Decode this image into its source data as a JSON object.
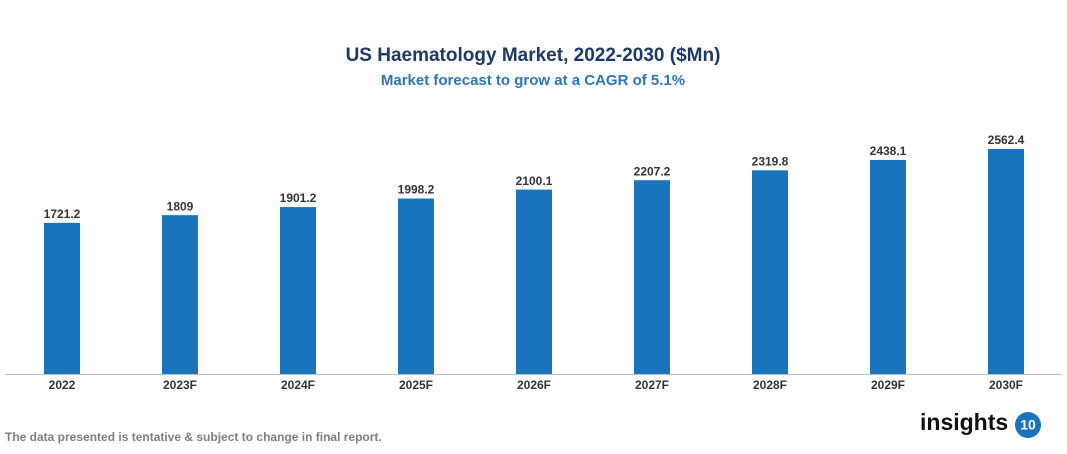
{
  "chart_data": {
    "type": "bar",
    "title": "US Haematology Market, 2022-2030 ($Mn)",
    "subtitle": "Market forecast to grow at a CAGR of 5.1%",
    "categories": [
      "2022",
      "2023F",
      "2024F",
      "2025F",
      "2026F",
      "2027F",
      "2028F",
      "2029F",
      "2030F"
    ],
    "values": [
      1721.2,
      1809,
      1901.2,
      1998.2,
      2100.1,
      2207.2,
      2319.8,
      2438.1,
      2562.4
    ],
    "color": "#1a74bd"
  },
  "footnote": "The data presented is tentative & subject to change in final report.",
  "logo": {
    "text": "insights",
    "badge": "10"
  }
}
